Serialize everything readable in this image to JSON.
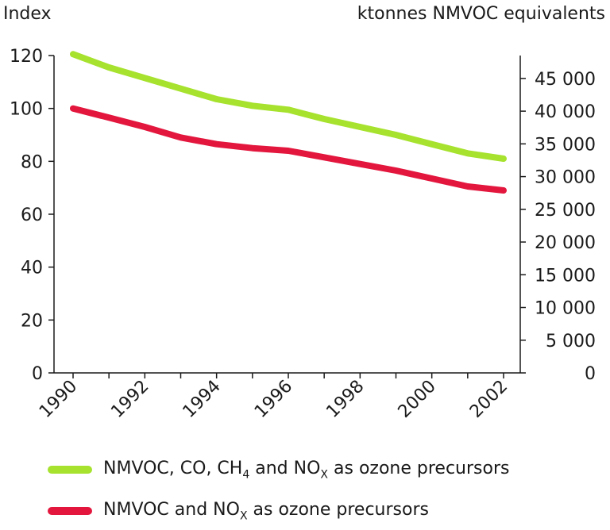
{
  "chart_data": {
    "type": "line",
    "left_axis_title": "Index",
    "right_axis_title": "ktonnes NMVOC equivalents",
    "x": [
      1990,
      1991,
      1992,
      1993,
      1994,
      1995,
      1996,
      1997,
      1998,
      1999,
      2000,
      2001,
      2002
    ],
    "x_tick_labels": [
      "1990",
      "1992",
      "1994",
      "1996",
      "1998",
      "2000",
      "2002"
    ],
    "y_left": {
      "min": 0,
      "max": 120,
      "ticks": [
        "0",
        "20",
        "40",
        "60",
        "80",
        "100",
        "120"
      ]
    },
    "y_right": {
      "min": 0,
      "max": 48500,
      "ticks": [
        "0",
        "5 000",
        "10 000",
        "15 000",
        "20 000",
        "25 000",
        "30 000",
        "35 000",
        "40 000",
        "45 000"
      ]
    },
    "series": [
      {
        "name": "NMVOC, CO, CH4 and NOX as ozone precursors",
        "color": "#a6e22e",
        "values": [
          120.5,
          115.5,
          111.5,
          107.5,
          103.5,
          101.0,
          99.5,
          96.0,
          93.0,
          90.0,
          86.5,
          83.0,
          81.0
        ]
      },
      {
        "name": "NMVOC and NOX as ozone precursors",
        "color": "#e3173e",
        "values": [
          100.0,
          96.5,
          93.0,
          89.0,
          86.5,
          85.0,
          84.0,
          81.5,
          79.0,
          76.5,
          73.5,
          70.5,
          69.0
        ]
      }
    ],
    "grid": false
  },
  "legend": {
    "item1": {
      "pre": "NMVOC, CO, CH",
      "sub1": "4",
      "mid": " and NO",
      "sub2": "X",
      "post": " as ozone precursors"
    },
    "item2": {
      "pre": "NMVOC and NO",
      "sub1": "X",
      "post": " as ozone precursors"
    }
  }
}
